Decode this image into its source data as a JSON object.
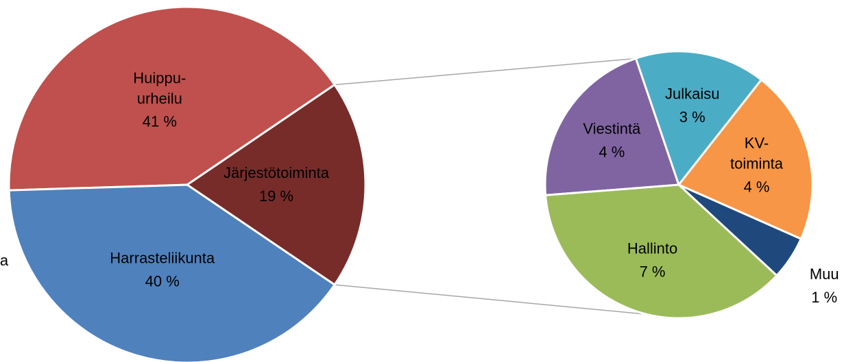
{
  "chart_data": [
    {
      "type": "pie",
      "categories": [
        "Huippu-urheilu",
        "Järjestötoiminta",
        "Harrasteliikunta"
      ],
      "values": [
        41,
        19,
        40
      ],
      "value_labels": [
        "41 %",
        "19 %",
        "40 %"
      ],
      "colors": [
        "#C0504D",
        "#772C2A",
        "#4F81BD"
      ],
      "annotations": [
        "a"
      ]
    },
    {
      "type": "pie",
      "categories": [
        "Viestintä",
        "Julkaisu",
        "KV-toiminta",
        "Muu",
        "Hallinto"
      ],
      "values": [
        4,
        3,
        4,
        1,
        7
      ],
      "value_labels": [
        "4 %",
        "3 %",
        "4 %",
        "1 %",
        "7 %"
      ],
      "colors": [
        "#8064A2",
        "#4BACC6",
        "#F79646",
        "#1F497D",
        "#9BBB59"
      ]
    }
  ]
}
